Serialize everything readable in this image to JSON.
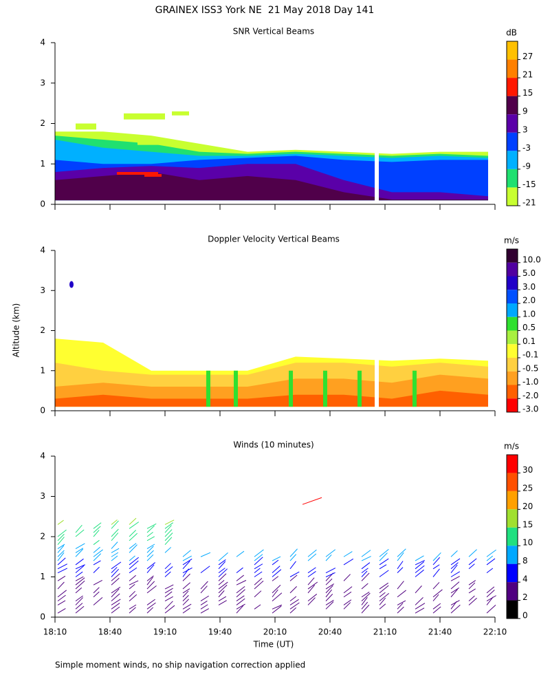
{
  "chart_data": {
    "type": "heatmap",
    "title": "GRAINEX ISS3 York NE  21 May 2018 Day 141",
    "xlabel": "Time (UT)",
    "ylabel": "Altitude (km)",
    "note": "Simple moment winds, no ship navigation correction applied",
    "categories": [
      "18:10",
      "18:40",
      "19:10",
      "19:40",
      "20:10",
      "20:40",
      "21:10",
      "21:40",
      "22:10"
    ],
    "panels": [
      {
        "title": "SNR Vertical Beams",
        "unit": "dB",
        "ylim": [
          0,
          4
        ],
        "yticks": [
          0,
          1,
          2,
          3,
          4
        ],
        "colorbar": {
          "ticks": [
            27,
            21,
            15,
            9,
            3,
            -3,
            -9,
            -15,
            -21
          ],
          "colors": [
            "#ffc000",
            "#ff8000",
            "#ff1800",
            "#50004a",
            "#5a00a8",
            "#0040ff",
            "#00b0ff",
            "#20e070",
            "#c8ff30"
          ]
        }
      },
      {
        "title": "Doppler Velocity Vertical Beams",
        "unit": "m/s",
        "ylim": [
          0,
          4
        ],
        "yticks": [
          0,
          1,
          2,
          3,
          4
        ],
        "colorbar": {
          "ticks": [
            {
              "value": 10,
              "label": "10.0"
            },
            {
              "value": 5,
              "label": "5.0"
            },
            {
              "value": 3,
              "label": "3.0"
            },
            {
              "value": 2,
              "label": "2.0"
            },
            {
              "value": 1,
              "label": "1.0"
            },
            0.5,
            0.1,
            -0.1,
            -0.5,
            {
              "value": -1,
              "label": "-1.0"
            },
            {
              "value": -2,
              "label": "-2.0"
            },
            {
              "value": -3,
              "label": "-3.0"
            }
          ],
          "colors": [
            "#300030",
            "#5000a0",
            "#2000c8",
            "#0050ff",
            "#00a8ff",
            "#30e030",
            "#a8f040",
            "#ffff30",
            "#ffd040",
            "#ffa020",
            "#ff6000",
            "#ff0000"
          ]
        }
      },
      {
        "title": "Winds (10 minutes)",
        "unit": "m/s",
        "ylim": [
          0,
          4
        ],
        "yticks": [
          0,
          1,
          2,
          3,
          4
        ],
        "colorbar": {
          "ticks": [
            30,
            25,
            20,
            15,
            10,
            8,
            4,
            2,
            0
          ],
          "colors": [
            "#ff0000",
            "#ff5000",
            "#ffa000",
            "#a0e030",
            "#20e080",
            "#00a8ff",
            "#0000ff",
            "#500080",
            "#000000"
          ]
        }
      }
    ]
  }
}
